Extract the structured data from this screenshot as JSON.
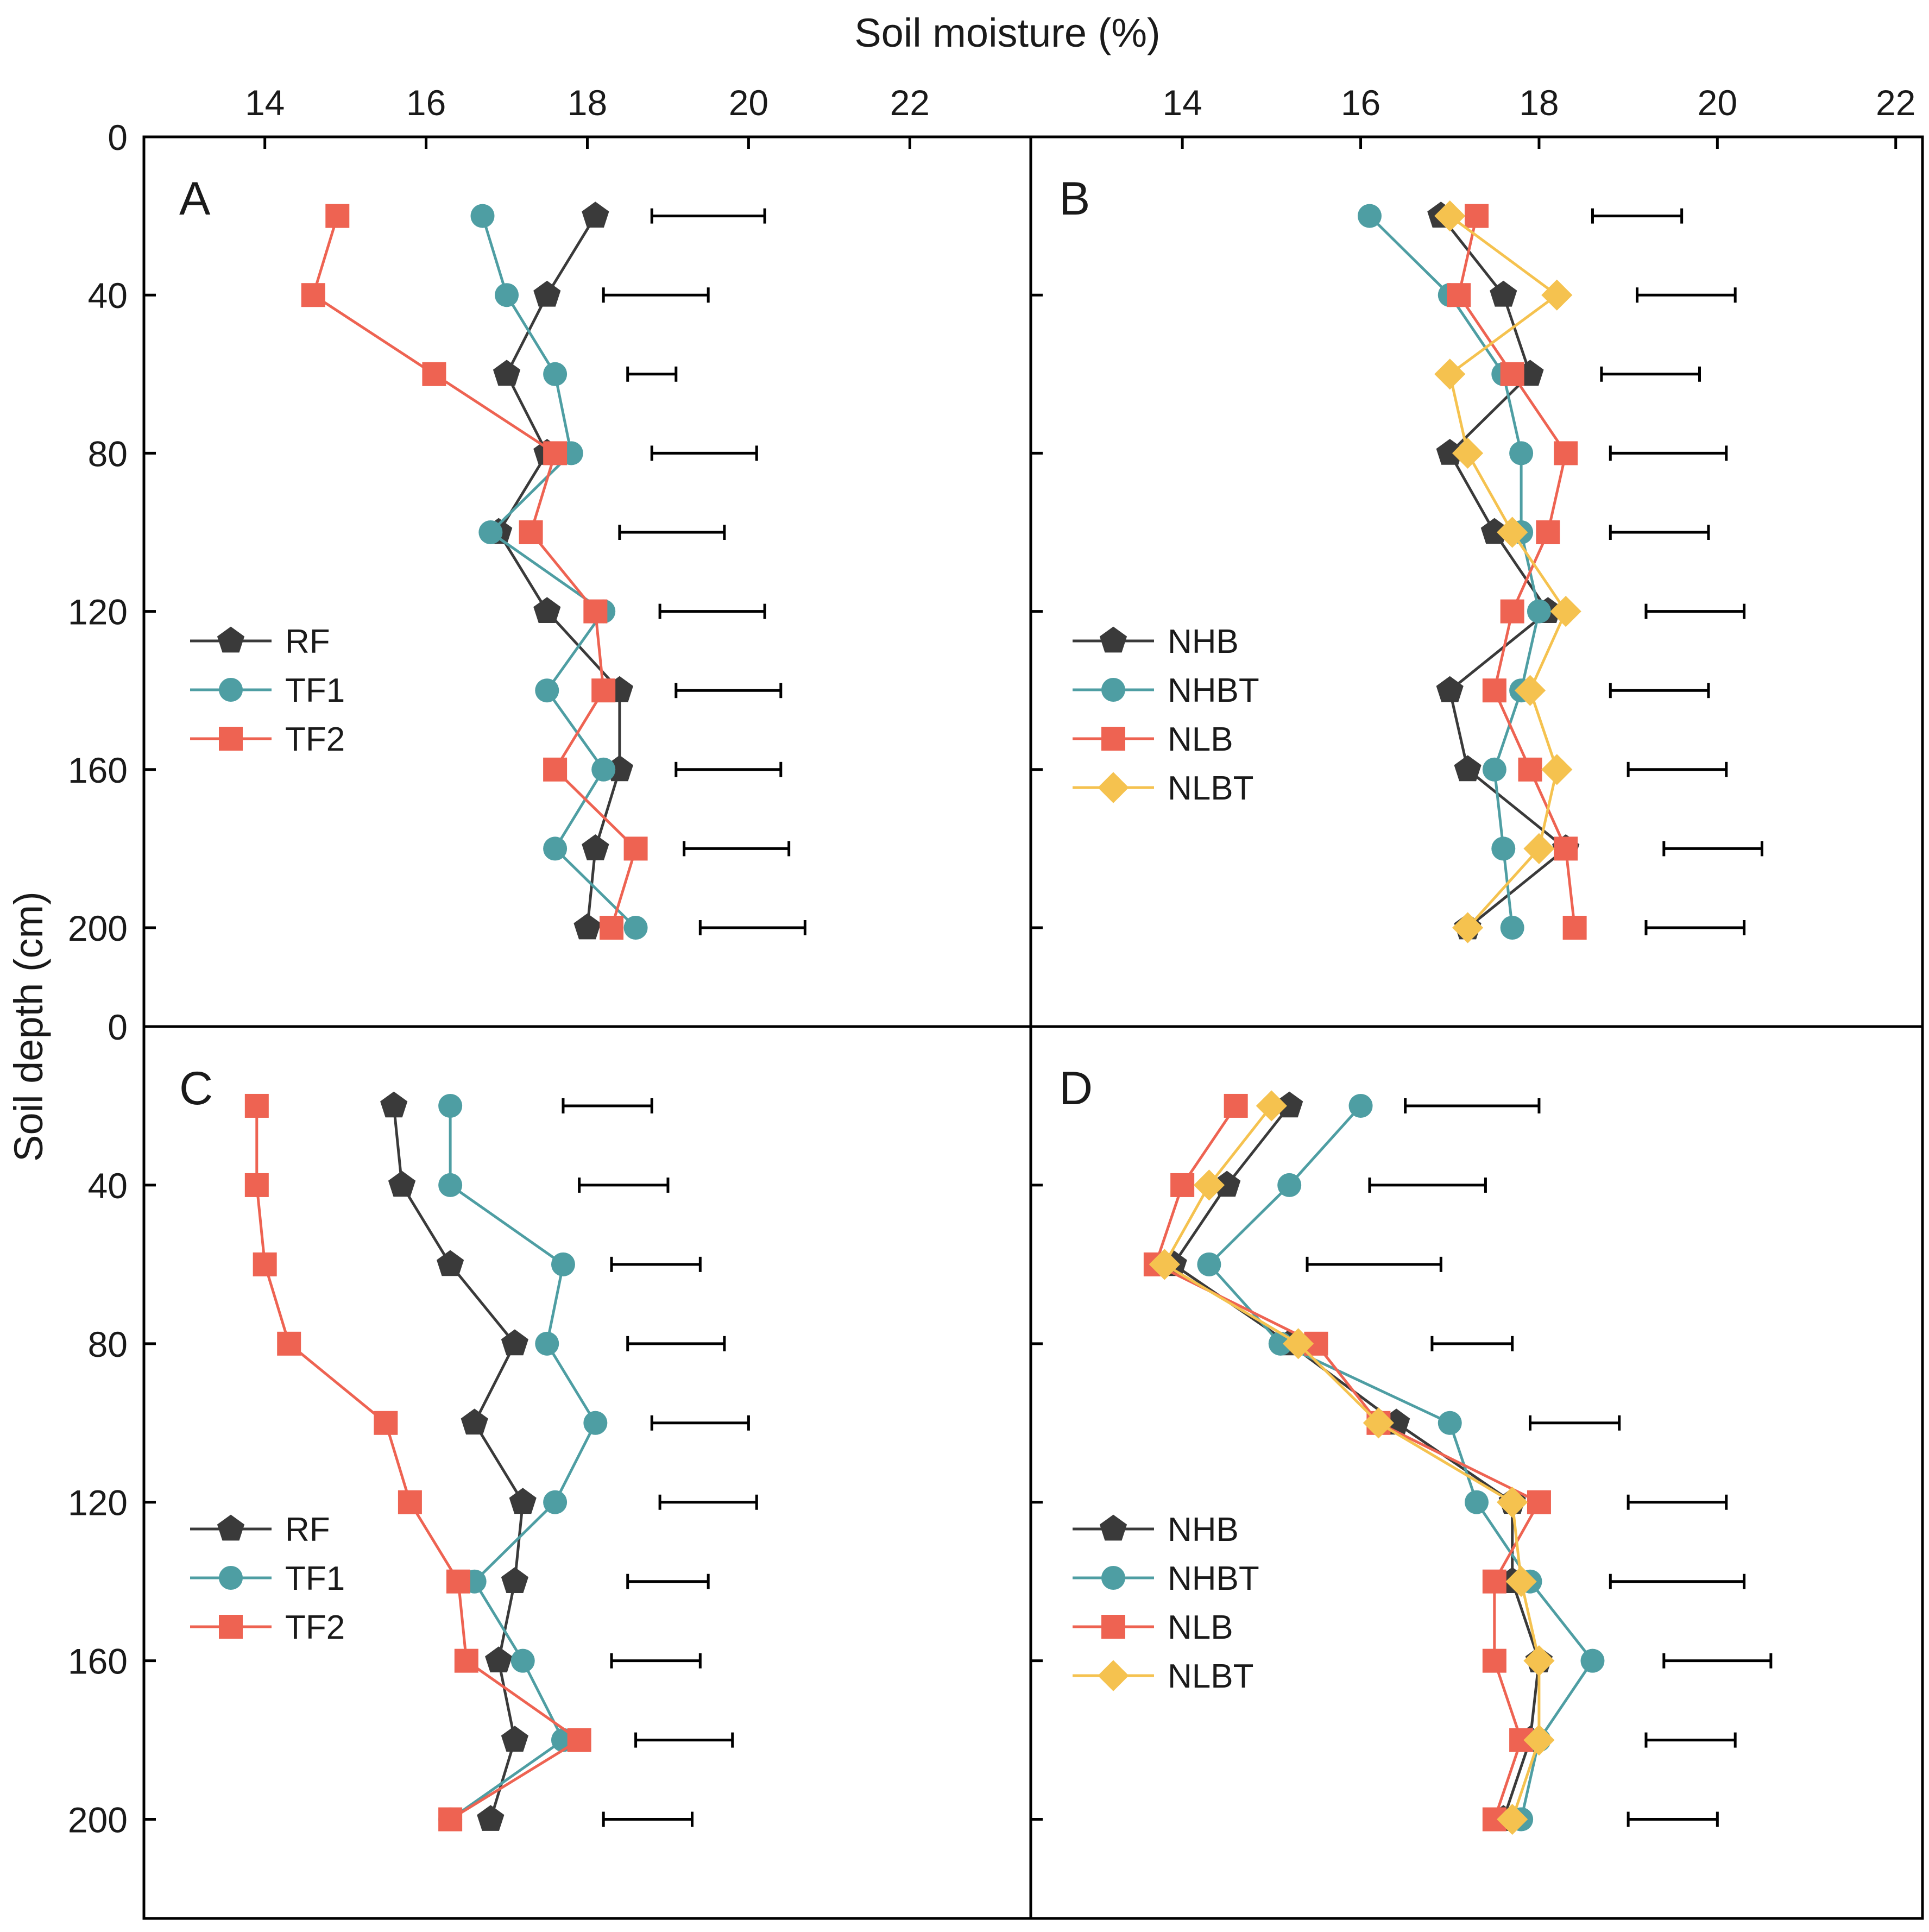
{
  "figure": {
    "x_axis_title": "Soil moisture (%)",
    "y_axis_title": "Soil depth (cm)"
  },
  "colors": {
    "RF": "#3a3a3a",
    "TF1": "#4e9ea3",
    "TF2": "#ee6352",
    "NHB": "#3a3a3a",
    "NHBT": "#4e9ea3",
    "NLB": "#ee6352",
    "NLBT": "#f5c24f",
    "errorbar": "#000000"
  },
  "chart_data": [
    {
      "panel": "A",
      "type": "line",
      "xlim": [
        12.5,
        23.5
      ],
      "xticks": [
        14,
        16,
        18,
        20,
        22
      ],
      "ylim": [
        0,
        225
      ],
      "yticks": [
        0,
        40,
        80,
        120,
        160,
        200
      ],
      "depths": [
        20,
        40,
        60,
        80,
        100,
        120,
        140,
        160,
        180,
        200
      ],
      "series": [
        {
          "name": "RF",
          "marker": "pentagon",
          "values": [
            18.1,
            17.5,
            17.0,
            17.5,
            16.9,
            17.5,
            18.4,
            18.4,
            18.1,
            18.0
          ]
        },
        {
          "name": "TF1",
          "marker": "circle",
          "values": [
            16.7,
            17.0,
            17.6,
            17.8,
            16.8,
            18.2,
            17.5,
            18.2,
            17.6,
            18.6
          ]
        },
        {
          "name": "TF2",
          "marker": "square",
          "values": [
            14.9,
            14.6,
            16.1,
            17.6,
            17.3,
            18.1,
            18.2,
            17.6,
            18.6,
            18.3
          ]
        }
      ],
      "error_bars": {
        "depths": [
          20,
          40,
          60,
          80,
          100,
          120,
          140,
          160,
          180,
          200
        ],
        "left": [
          18.8,
          18.2,
          18.5,
          18.8,
          18.4,
          18.9,
          19.1,
          19.1,
          19.2,
          19.4
        ],
        "right": [
          20.2,
          19.5,
          19.1,
          20.1,
          19.7,
          20.2,
          20.4,
          20.4,
          20.5,
          20.7
        ]
      },
      "legend": [
        "RF",
        "TF1",
        "TF2"
      ]
    },
    {
      "panel": "B",
      "type": "line",
      "xlim": [
        12.3,
        22.3
      ],
      "xticks": [
        14,
        16,
        18,
        20,
        22
      ],
      "ylim": [
        0,
        225
      ],
      "yticks": [
        0,
        40,
        80,
        120,
        160,
        200
      ],
      "depths": [
        20,
        40,
        60,
        80,
        100,
        120,
        140,
        160,
        180,
        200
      ],
      "series": [
        {
          "name": "NHB",
          "marker": "pentagon",
          "values": [
            16.9,
            17.6,
            17.9,
            17.0,
            17.5,
            18.1,
            17.0,
            17.2,
            18.3,
            17.2
          ]
        },
        {
          "name": "NHBT",
          "marker": "circle",
          "values": [
            16.1,
            17.0,
            17.6,
            17.8,
            17.8,
            18.0,
            17.8,
            17.5,
            17.6,
            17.7
          ]
        },
        {
          "name": "NLB",
          "marker": "square",
          "values": [
            17.3,
            17.1,
            17.7,
            18.3,
            18.1,
            17.7,
            17.5,
            17.9,
            18.3,
            18.4
          ]
        },
        {
          "name": "NLBT",
          "marker": "diamond",
          "values": [
            17.0,
            18.2,
            17.0,
            17.2,
            17.7,
            18.3,
            17.9,
            18.2,
            18.0,
            17.2
          ]
        }
      ],
      "error_bars": {
        "depths": [
          20,
          40,
          60,
          80,
          100,
          120,
          140,
          160,
          180,
          200
        ],
        "left": [
          18.6,
          19.1,
          18.7,
          18.8,
          18.8,
          19.2,
          18.8,
          19.0,
          19.4,
          19.2
        ],
        "right": [
          19.6,
          20.2,
          19.8,
          20.1,
          19.9,
          20.3,
          19.9,
          20.1,
          20.5,
          20.3
        ]
      },
      "legend": [
        "NHB",
        "NHBT",
        "NLB",
        "NLBT"
      ]
    },
    {
      "panel": "C",
      "type": "line",
      "xlim": [
        12.5,
        23.5
      ],
      "xticks": [
        14,
        16,
        18,
        20,
        22
      ],
      "ylim": [
        0,
        225
      ],
      "yticks": [
        0,
        40,
        80,
        120,
        160,
        200
      ],
      "depths": [
        20,
        40,
        60,
        80,
        100,
        120,
        140,
        160,
        180,
        200
      ],
      "series": [
        {
          "name": "RF",
          "marker": "pentagon",
          "values": [
            15.6,
            15.7,
            16.3,
            17.1,
            16.6,
            17.2,
            17.1,
            16.9,
            17.1,
            16.8
          ]
        },
        {
          "name": "TF1",
          "marker": "circle",
          "values": [
            16.3,
            16.3,
            17.7,
            17.5,
            18.1,
            17.6,
            16.6,
            17.2,
            17.7,
            16.3
          ]
        },
        {
          "name": "TF2",
          "marker": "square",
          "values": [
            13.9,
            13.9,
            14.0,
            14.3,
            15.5,
            15.8,
            16.4,
            16.5,
            17.9,
            16.3
          ]
        }
      ],
      "error_bars": {
        "depths": [
          20,
          40,
          60,
          80,
          100,
          120,
          140,
          160,
          180,
          200
        ],
        "left": [
          17.7,
          17.9,
          18.3,
          18.5,
          18.8,
          18.9,
          18.5,
          18.3,
          18.6,
          18.2
        ],
        "right": [
          18.8,
          19.0,
          19.4,
          19.7,
          20.0,
          20.1,
          19.5,
          19.4,
          19.8,
          19.3
        ]
      },
      "legend": [
        "RF",
        "TF1",
        "TF2"
      ]
    },
    {
      "panel": "D",
      "type": "line",
      "xlim": [
        12.3,
        22.3
      ],
      "xticks": [
        14,
        16,
        18,
        20,
        22
      ],
      "ylim": [
        0,
        225
      ],
      "yticks": [
        0,
        40,
        80,
        120,
        160,
        200
      ],
      "depths": [
        20,
        40,
        60,
        80,
        100,
        120,
        140,
        160,
        180,
        200
      ],
      "series": [
        {
          "name": "NHB",
          "marker": "pentagon",
          "values": [
            15.2,
            14.5,
            13.9,
            15.2,
            16.4,
            17.7,
            17.7,
            18.0,
            17.9,
            17.6
          ]
        },
        {
          "name": "NHBT",
          "marker": "circle",
          "values": [
            16.0,
            15.2,
            14.3,
            15.1,
            17.0,
            17.3,
            17.9,
            18.6,
            18.0,
            17.8
          ]
        },
        {
          "name": "NLB",
          "marker": "square",
          "values": [
            14.6,
            14.0,
            13.7,
            15.5,
            16.2,
            18.0,
            17.5,
            17.5,
            17.8,
            17.5
          ]
        },
        {
          "name": "NLBT",
          "marker": "diamond",
          "values": [
            15.0,
            14.3,
            13.8,
            15.3,
            16.2,
            17.7,
            17.8,
            18.0,
            18.0,
            17.7
          ]
        }
      ],
      "error_bars": {
        "depths": [
          20,
          40,
          60,
          80,
          100,
          120,
          140,
          160,
          180,
          200
        ],
        "left": [
          16.5,
          16.1,
          15.4,
          16.8,
          17.9,
          19.0,
          18.8,
          19.4,
          19.2,
          19.0
        ],
        "right": [
          18.0,
          17.4,
          16.9,
          17.7,
          18.9,
          20.1,
          20.3,
          20.6,
          20.2,
          20.0
        ]
      },
      "legend": [
        "NHB",
        "NHBT",
        "NLB",
        "NLBT"
      ]
    }
  ]
}
